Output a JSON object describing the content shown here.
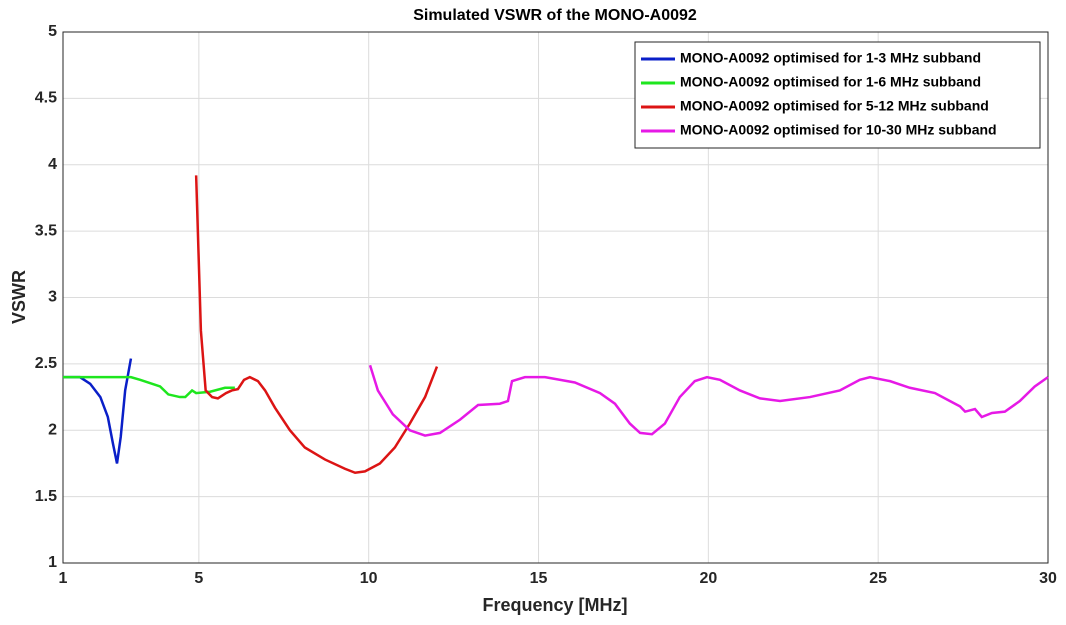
{
  "chart_data": {
    "type": "line",
    "title": "Simulated VSWR of the MONO-A0092",
    "xlabel": "Frequency [MHz]",
    "ylabel": "VSWR",
    "xlim": [
      1,
      30
    ],
    "xticks": [
      1,
      5,
      10,
      15,
      20,
      25,
      30
    ],
    "ylim": [
      1,
      5
    ],
    "yticks": [
      1,
      1.5,
      2,
      2.5,
      3,
      3.5,
      4,
      4.5,
      5
    ],
    "grid": true,
    "legend": "upper right",
    "series": [
      {
        "name": "MONO-A0092 optimised for 1-3 MHz subband",
        "color": "#0a1fc8",
        "x": [
          1,
          1.5,
          1.8,
          2.1,
          2.32,
          2.47,
          2.59,
          2.7,
          2.83,
          3.0
        ],
        "values": [
          2.4,
          2.4,
          2.35,
          2.25,
          2.1,
          1.9,
          1.75,
          1.95,
          2.3,
          2.54
        ]
      },
      {
        "name": "MONO-A0092 optimised for 1-6 MHz subband",
        "color": "#1ee61e",
        "x": [
          1,
          2,
          3,
          3.27,
          3.86,
          4.1,
          4.44,
          4.6,
          4.8,
          4.92,
          5.33,
          5.77,
          6.06
        ],
        "values": [
          2.4,
          2.4,
          2.4,
          2.38,
          2.33,
          2.27,
          2.25,
          2.25,
          2.3,
          2.28,
          2.29,
          2.32,
          2.32
        ]
      },
      {
        "name": "MONO-A0092 optimised for 5-12 MHz subband",
        "color": "#dc1414",
        "x": [
          4.92,
          5.06,
          5.2,
          5.39,
          5.56,
          5.8,
          5.97,
          6.15,
          6.33,
          6.5,
          6.74,
          6.95,
          7.24,
          7.68,
          8.12,
          8.71,
          9.3,
          9.6,
          9.89,
          10.33,
          10.77,
          11.21,
          11.66,
          12.01
        ],
        "values": [
          3.92,
          2.75,
          2.3,
          2.25,
          2.24,
          2.28,
          2.3,
          2.31,
          2.38,
          2.4,
          2.37,
          2.3,
          2.17,
          2.0,
          1.87,
          1.78,
          1.71,
          1.68,
          1.69,
          1.75,
          1.87,
          2.05,
          2.25,
          2.48
        ]
      },
      {
        "name": "MONO-A0092 optimised for 10-30 MHz subband",
        "color": "#e619e6",
        "x": [
          10.04,
          10.27,
          10.71,
          11.21,
          11.66,
          12.1,
          12.69,
          13.22,
          13.86,
          14.1,
          14.22,
          14.6,
          15.19,
          16.07,
          16.81,
          17.25,
          17.69,
          17.99,
          18.34,
          18.72,
          19.16,
          19.6,
          19.96,
          20.34,
          20.93,
          21.52,
          22.11,
          22.99,
          23.87,
          24.46,
          24.76,
          25.35,
          25.93,
          26.67,
          27.11,
          27.41,
          27.56,
          27.85,
          28.05,
          28.35,
          28.73,
          29.17,
          29.61,
          30
        ],
        "values": [
          2.49,
          2.3,
          2.12,
          2.0,
          1.96,
          1.98,
          2.08,
          2.19,
          2.2,
          2.22,
          2.37,
          2.4,
          2.4,
          2.36,
          2.28,
          2.2,
          2.05,
          1.98,
          1.97,
          2.05,
          2.25,
          2.37,
          2.4,
          2.38,
          2.3,
          2.24,
          2.22,
          2.25,
          2.3,
          2.38,
          2.4,
          2.37,
          2.32,
          2.28,
          2.22,
          2.18,
          2.14,
          2.16,
          2.1,
          2.13,
          2.14,
          2.22,
          2.33,
          2.4
        ]
      }
    ]
  }
}
